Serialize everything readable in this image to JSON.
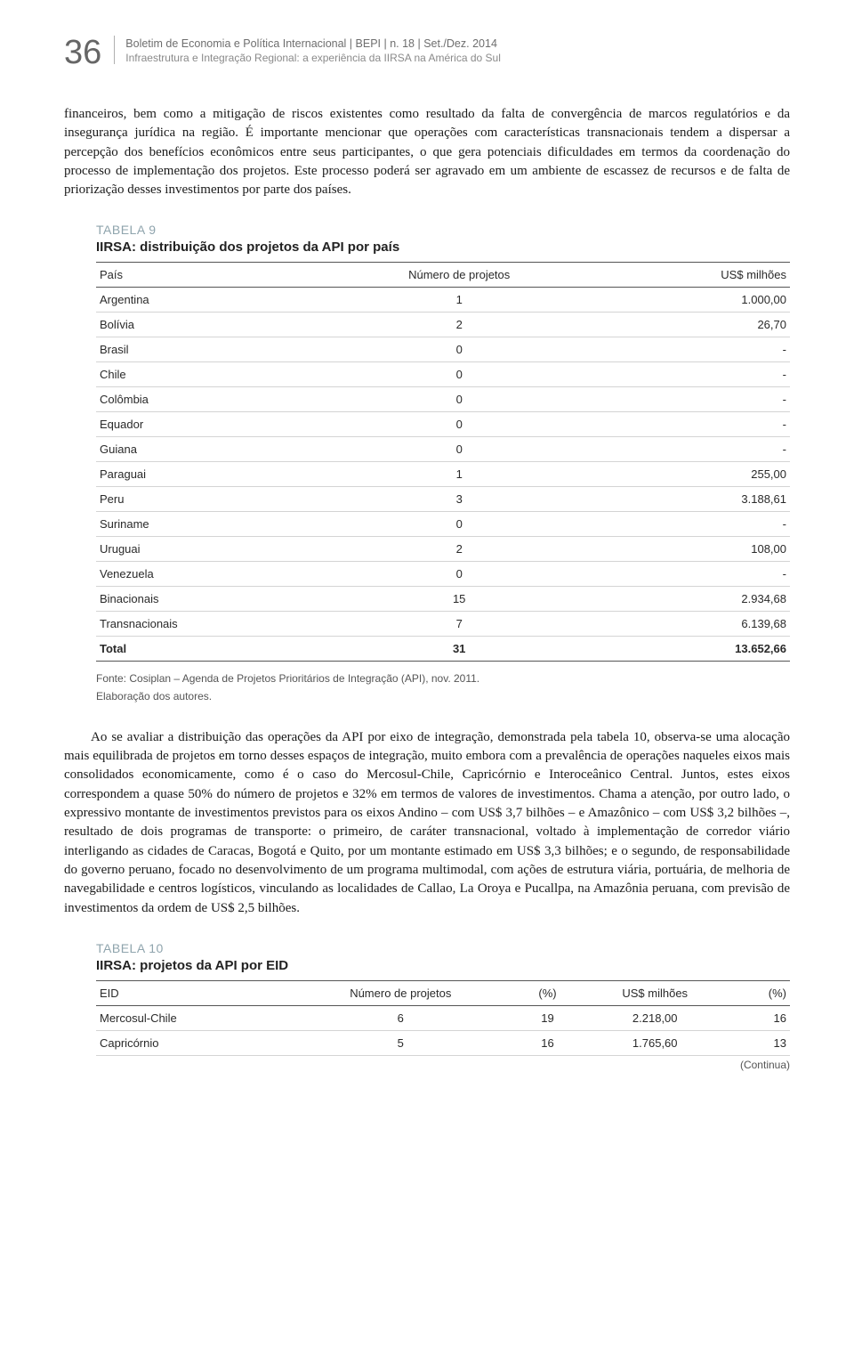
{
  "header": {
    "page_number": "36",
    "line1": "Boletim de Economia e Política Internacional | BEPI | n. 18 | Set./Dez. 2014",
    "line2": "Infraestrutura e Integração Regional: a experiência da IIRSA na América do Sul"
  },
  "paragraph1": "financeiros, bem como a mitigação de riscos existentes como resultado da falta de convergência de marcos regulatórios e da insegurança jurídica na região. É importante mencionar que operações com características transnacionais tendem a dispersar a percepção dos benefícios econômicos entre seus participantes, o que gera potenciais dificuldades em termos da coordenação do processo de implementação dos projetos. Este processo poderá ser agravado em um ambiente de escassez de recursos e de falta de priorização desses investimentos por parte dos países.",
  "table9": {
    "caption": "TABELA 9",
    "title": "IIRSA: distribuição dos projetos da API por país",
    "columns": [
      "País",
      "Número de projetos",
      "US$ milhões"
    ],
    "rows": [
      [
        "Argentina",
        "1",
        "1.000,00"
      ],
      [
        "Bolívia",
        "2",
        "26,70"
      ],
      [
        "Brasil",
        "0",
        "-"
      ],
      [
        "Chile",
        "0",
        "-"
      ],
      [
        "Colômbia",
        "0",
        "-"
      ],
      [
        "Equador",
        "0",
        "-"
      ],
      [
        "Guiana",
        "0",
        "-"
      ],
      [
        "Paraguai",
        "1",
        "255,00"
      ],
      [
        "Peru",
        "3",
        "3.188,61"
      ],
      [
        "Suriname",
        "0",
        "-"
      ],
      [
        "Uruguai",
        "2",
        "108,00"
      ],
      [
        "Venezuela",
        "0",
        "-"
      ],
      [
        "Binacionais",
        "15",
        "2.934,68"
      ],
      [
        "Transnacionais",
        "7",
        "6.139,68"
      ]
    ],
    "total_row": [
      "Total",
      "31",
      "13.652,66"
    ],
    "footer_line1": "Fonte: Cosiplan – Agenda de Projetos Prioritários de Integração (API), nov. 2011.",
    "footer_line2": "Elaboração dos autores."
  },
  "paragraph2": "Ao se avaliar a distribuição das operações da API por eixo de integração, demonstrada pela tabela 10, observa-se uma alocação mais equilibrada de projetos em torno desses espaços de integração, muito embora com a prevalência de operações naqueles eixos mais consolidados economicamente, como é o caso do Mercosul-Chile, Capricórnio e Interoceânico Central. Juntos, estes eixos correspondem a quase 50% do número de projetos e 32% em termos de valores de investimentos. Chama a atenção, por outro lado, o expressivo montante de investimentos previstos para os eixos Andino – com US$ 3,7 bilhões – e Amazônico – com US$ 3,2 bilhões –, resultado de dois programas de transporte: o primeiro, de caráter transnacional, voltado à implementação de corredor viário interligando as cidades de Caracas, Bogotá e Quito, por um montante estimado em US$ 3,3 bilhões; e o segundo, de responsabilidade do governo peruano, focado no desenvolvimento de um programa multimodal, com ações de estrutura viária, portuária, de melhoria de navegabilidade e centros logísticos, vinculando as localidades de Callao, La Oroya e Pucallpa, na Amazônia peruana, com previsão de investimentos da ordem de US$ 2,5 bilhões.",
  "table10": {
    "caption": "TABELA 10",
    "title": "IIRSA: projetos da API por EID",
    "columns": [
      "EID",
      "Número de projetos",
      "(%)",
      "US$ milhões",
      "(%)"
    ],
    "rows": [
      [
        "Mercosul-Chile",
        "6",
        "19",
        "2.218,00",
        "16"
      ],
      [
        "Capricórnio",
        "5",
        "16",
        "1.765,60",
        "13"
      ]
    ],
    "continua": "(Continua)"
  },
  "style": {
    "page_bg": "#ffffff",
    "text_color": "#1a1a1a",
    "caption_color": "#8fa4ad",
    "header_gray": "#6e6e6e",
    "dim_gray": "#8a8a8a",
    "rule_color": "#555555",
    "row_rule_color": "#d4d4d4",
    "body_font_size_pt": 11.5,
    "table_font_size_pt": 10,
    "caption_font_size_pt": 10.5,
    "title_font_size_pt": 11.5,
    "line_height": 1.42
  }
}
